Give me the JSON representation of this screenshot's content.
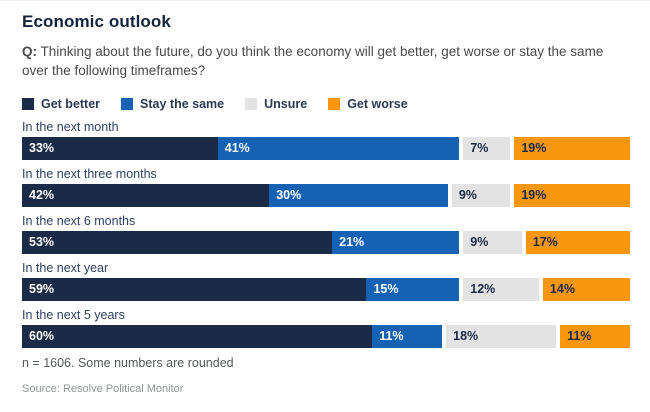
{
  "header": {
    "title": "Economic outlook",
    "question_prefix": "Q:",
    "question_text": " Thinking about the future, do you think the economy will get better, get worse or stay the same over the following timeframes?"
  },
  "colors": {
    "get_better": "#1b2a47",
    "stay_the_same": "#1562b4",
    "unsure": "#e3e3e3",
    "get_worse": "#f8960d",
    "title_navy": "#14233c",
    "label_on_dark": "#ffffff",
    "label_on_light": "#1b2a47"
  },
  "chart_data": {
    "type": "bar",
    "orientation": "horizontal_stacked",
    "unit": "%",
    "xlim": [
      0,
      100
    ],
    "legend_position": "top",
    "value_labels": "inside_left",
    "categories": [
      "In the next month",
      "In the next three months",
      "In the next 6 months",
      "In the next year",
      "In the next 5 years"
    ],
    "series": [
      {
        "name": "Get better",
        "color": "#1b2a47",
        "label_color": "#ffffff",
        "values": [
          33,
          42,
          53,
          59,
          60
        ]
      },
      {
        "name": "Stay the same",
        "color": "#1562b4",
        "label_color": "#ffffff",
        "values": [
          41,
          30,
          21,
          15,
          11
        ]
      },
      {
        "name": "Unsure",
        "color": "#e3e3e3",
        "label_color": "#1b2a47",
        "values": [
          7,
          9,
          9,
          12,
          18
        ]
      },
      {
        "name": "Get worse",
        "color": "#f8960d",
        "label_color": "#1b2a47",
        "values": [
          19,
          19,
          17,
          14,
          11
        ]
      }
    ]
  },
  "footer": {
    "note": "n = 1606. Some numbers are rounded",
    "source": "Source: Resolve Political Monitor"
  }
}
